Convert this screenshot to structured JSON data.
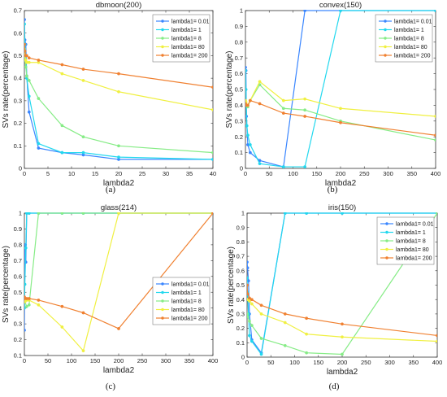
{
  "chart_data": [
    {
      "type": "line",
      "title": "dbmoon(200)",
      "caption": "(a)",
      "xlabel": "lambda2",
      "ylabel": "SVs rate(percentage)",
      "xlim": [
        0,
        40
      ],
      "ylim": [
        0,
        0.7
      ],
      "xticks": [
        "0",
        "5",
        "10",
        "15",
        "20",
        "25",
        "30",
        "35",
        "40"
      ],
      "yticks": [
        "0",
        "0.1",
        "0.2",
        "0.3",
        "0.4",
        "0.5",
        "0.6",
        "0.7"
      ],
      "legend_position": "top-right",
      "series": [
        {
          "name": "lambda1= 0.01",
          "color": "#3a86ff",
          "points": [
            [
              0.01,
              0.66
            ],
            [
              0.1,
              0.57
            ],
            [
              0.3,
              0.55
            ],
            [
              0.5,
              0.41
            ],
            [
              1,
              0.25
            ],
            [
              3,
              0.09
            ],
            [
              8,
              0.07
            ],
            [
              12.5,
              0.06
            ],
            [
              20,
              0.04
            ],
            [
              40,
              0.04
            ]
          ]
        },
        {
          "name": "lambda1= 1",
          "color": "#22d8ee",
          "points": [
            [
              0.01,
              0.64
            ],
            [
              0.1,
              0.55
            ],
            [
              0.3,
              0.5
            ],
            [
              0.5,
              0.4
            ],
            [
              1,
              0.32
            ],
            [
              3,
              0.11
            ],
            [
              8,
              0.07
            ],
            [
              12.5,
              0.07
            ],
            [
              20,
              0.05
            ],
            [
              40,
              0.04
            ]
          ]
        },
        {
          "name": "lambda1= 8",
          "color": "#86ec86",
          "points": [
            [
              0.01,
              0.53
            ],
            [
              0.1,
              0.48
            ],
            [
              0.3,
              0.45
            ],
            [
              0.5,
              0.41
            ],
            [
              1,
              0.39
            ],
            [
              3,
              0.31
            ],
            [
              8,
              0.19
            ],
            [
              12.5,
              0.14
            ],
            [
              20,
              0.1
            ],
            [
              40,
              0.07
            ]
          ]
        },
        {
          "name": "lambda1= 80",
          "color": "#f0f040",
          "points": [
            [
              0.01,
              0.52
            ],
            [
              0.1,
              0.5
            ],
            [
              0.3,
              0.48
            ],
            [
              0.5,
              0.47
            ],
            [
              1,
              0.47
            ],
            [
              3,
              0.47
            ],
            [
              8,
              0.42
            ],
            [
              12.5,
              0.39
            ],
            [
              20,
              0.34
            ],
            [
              40,
              0.26
            ]
          ]
        },
        {
          "name": "lambda1= 200",
          "color": "#f08030",
          "points": [
            [
              0.01,
              0.55
            ],
            [
              0.1,
              0.52
            ],
            [
              0.3,
              0.5
            ],
            [
              0.5,
              0.5
            ],
            [
              1,
              0.49
            ],
            [
              3,
              0.48
            ],
            [
              8,
              0.46
            ],
            [
              12.5,
              0.44
            ],
            [
              20,
              0.42
            ],
            [
              40,
              0.36
            ]
          ]
        }
      ]
    },
    {
      "type": "line",
      "title": "convex(150)",
      "caption": "(b)",
      "xlabel": "lambda2",
      "ylabel": "SVs rate(percentage)",
      "xlim": [
        0,
        400
      ],
      "ylim": [
        0,
        1
      ],
      "xticks": [
        "0",
        "50",
        "100",
        "150",
        "200",
        "250",
        "300",
        "350",
        "400"
      ],
      "yticks": [
        "0",
        "0.1",
        "0.2",
        "0.3",
        "0.4",
        "0.5",
        "0.6",
        "0.7",
        "0.8",
        "0.9",
        "1"
      ],
      "legend_position": "top-right",
      "series": [
        {
          "name": "lambda1= 0.01",
          "color": "#3a86ff",
          "points": [
            [
              0.01,
              0.64
            ],
            [
              1,
              0.62
            ],
            [
              2,
              0.33
            ],
            [
              5,
              0.15
            ],
            [
              10,
              0.1
            ],
            [
              30,
              0.05
            ],
            [
              80,
              0.01
            ],
            [
              125,
              1
            ],
            [
              200,
              1
            ],
            [
              400,
              1
            ]
          ]
        },
        {
          "name": "lambda1= 1",
          "color": "#22d8ee",
          "points": [
            [
              0.01,
              0.62
            ],
            [
              1,
              0.5
            ],
            [
              3,
              0.27
            ],
            [
              5,
              0.21
            ],
            [
              10,
              0.15
            ],
            [
              30,
              0.03
            ],
            [
              80,
              0.01
            ],
            [
              125,
              0.01
            ],
            [
              200,
              1
            ],
            [
              400,
              1
            ]
          ]
        },
        {
          "name": "lambda1= 8",
          "color": "#86ec86",
          "points": [
            [
              0.01,
              0.41
            ],
            [
              1,
              0.4
            ],
            [
              5,
              0.39
            ],
            [
              10,
              0.43
            ],
            [
              30,
              0.53
            ],
            [
              80,
              0.38
            ],
            [
              125,
              0.37
            ],
            [
              200,
              0.3
            ],
            [
              400,
              0.18
            ]
          ]
        },
        {
          "name": "lambda1= 80",
          "color": "#f0f040",
          "points": [
            [
              0.01,
              0.43
            ],
            [
              1,
              0.42
            ],
            [
              5,
              0.4
            ],
            [
              10,
              0.43
            ],
            [
              30,
              0.55
            ],
            [
              80,
              0.43
            ],
            [
              125,
              0.44
            ],
            [
              200,
              0.38
            ],
            [
              400,
              0.33
            ]
          ]
        },
        {
          "name": "lambda1= 200",
          "color": "#f08030",
          "points": [
            [
              0.01,
              0.41
            ],
            [
              1,
              0.4
            ],
            [
              5,
              0.4
            ],
            [
              10,
              0.43
            ],
            [
              30,
              0.41
            ],
            [
              80,
              0.35
            ],
            [
              125,
              0.33
            ],
            [
              200,
              0.29
            ],
            [
              400,
              0.21
            ]
          ]
        }
      ]
    },
    {
      "type": "line",
      "title": "glass(214)",
      "caption": "(c)",
      "xlabel": "lambda2",
      "ylabel": "SVs rate(percentage)",
      "xlim": [
        0,
        400
      ],
      "ylim": [
        0.1,
        1
      ],
      "xticks": [
        "0",
        "50",
        "100",
        "150",
        "200",
        "250",
        "300",
        "350",
        "400"
      ],
      "yticks": [
        "0.1",
        "0.2",
        "0.3",
        "0.4",
        "0.5",
        "0.6",
        "0.7",
        "0.8",
        "0.9",
        "1"
      ],
      "legend_position": "lower-right",
      "series": [
        {
          "name": "lambda1= 0.01",
          "color": "#3a86ff",
          "points": [
            [
              0.01,
              0.26
            ],
            [
              1,
              0.77
            ],
            [
              2,
              0.8
            ],
            [
              3,
              0.69
            ],
            [
              5,
              1
            ],
            [
              10,
              1
            ],
            [
              30,
              1
            ],
            [
              80,
              1
            ],
            [
              125,
              1
            ],
            [
              200,
              1
            ],
            [
              400,
              1
            ]
          ]
        },
        {
          "name": "lambda1= 1",
          "color": "#22d8ee",
          "points": [
            [
              0.01,
              0.4
            ],
            [
              1,
              0.55
            ],
            [
              3,
              0.78
            ],
            [
              5,
              1
            ],
            [
              10,
              1
            ],
            [
              30,
              1
            ],
            [
              80,
              1
            ],
            [
              125,
              1
            ],
            [
              200,
              1
            ],
            [
              400,
              1
            ]
          ]
        },
        {
          "name": "lambda1= 8",
          "color": "#86ec86",
          "points": [
            [
              0.01,
              0.45
            ],
            [
              1,
              0.44
            ],
            [
              5,
              0.41
            ],
            [
              10,
              0.42
            ],
            [
              30,
              1
            ],
            [
              80,
              1
            ],
            [
              125,
              1
            ],
            [
              200,
              1
            ],
            [
              400,
              1
            ]
          ]
        },
        {
          "name": "lambda1= 80",
          "color": "#f0f040",
          "points": [
            [
              0.01,
              0.45
            ],
            [
              1,
              0.44
            ],
            [
              5,
              0.45
            ],
            [
              10,
              0.45
            ],
            [
              30,
              0.42
            ],
            [
              80,
              0.28
            ],
            [
              125,
              0.13
            ],
            [
              200,
              1
            ],
            [
              400,
              1
            ]
          ]
        },
        {
          "name": "lambda1= 200",
          "color": "#f08030",
          "points": [
            [
              0.01,
              0.47
            ],
            [
              1,
              0.46
            ],
            [
              5,
              0.46
            ],
            [
              10,
              0.46
            ],
            [
              30,
              0.45
            ],
            [
              80,
              0.41
            ],
            [
              125,
              0.37
            ],
            [
              200,
              0.27
            ],
            [
              400,
              1
            ]
          ]
        }
      ]
    },
    {
      "type": "line",
      "title": "iris(150)",
      "caption": "(d)",
      "xlabel": "lambda2",
      "ylabel": "SVs rate(percentage)",
      "xlim": [
        0,
        400
      ],
      "ylim": [
        0,
        1
      ],
      "xticks": [
        "0",
        "50",
        "100",
        "150",
        "200",
        "250",
        "300",
        "350",
        "400"
      ],
      "yticks": [
        "0",
        "0.1",
        "0.2",
        "0.3",
        "0.4",
        "0.5",
        "0.6",
        "0.7",
        "0.8",
        "0.9",
        "1"
      ],
      "legend_position": "top-right",
      "series": [
        {
          "name": "lambda1= 0.01",
          "color": "#3a86ff",
          "points": [
            [
              0.01,
              0.66
            ],
            [
              1,
              0.62
            ],
            [
              3,
              0.53
            ],
            [
              5,
              0.3
            ],
            [
              10,
              0.12
            ],
            [
              30,
              0.03
            ],
            [
              80,
              1
            ],
            [
              125,
              1
            ],
            [
              200,
              1
            ],
            [
              400,
              1
            ]
          ]
        },
        {
          "name": "lambda1= 1",
          "color": "#22d8ee",
          "points": [
            [
              0.01,
              0.55
            ],
            [
              1,
              0.45
            ],
            [
              3,
              0.3
            ],
            [
              5,
              0.15
            ],
            [
              10,
              0.11
            ],
            [
              30,
              0.02
            ],
            [
              80,
              1
            ],
            [
              125,
              1
            ],
            [
              200,
              1
            ],
            [
              400,
              1
            ]
          ]
        },
        {
          "name": "lambda1= 8",
          "color": "#86ec86",
          "points": [
            [
              0.01,
              0.3
            ],
            [
              1,
              0.28
            ],
            [
              5,
              0.25
            ],
            [
              10,
              0.22
            ],
            [
              30,
              0.13
            ],
            [
              80,
              0.08
            ],
            [
              125,
              0.03
            ],
            [
              200,
              0.02
            ],
            [
              400,
              1
            ]
          ]
        },
        {
          "name": "lambda1= 80",
          "color": "#f0f040",
          "points": [
            [
              0.01,
              0.4
            ],
            [
              1,
              0.4
            ],
            [
              5,
              0.39
            ],
            [
              10,
              0.37
            ],
            [
              30,
              0.3
            ],
            [
              80,
              0.24
            ],
            [
              125,
              0.16
            ],
            [
              200,
              0.14
            ],
            [
              400,
              0.11
            ]
          ]
        },
        {
          "name": "lambda1= 200",
          "color": "#f08030",
          "points": [
            [
              0.01,
              0.5
            ],
            [
              1,
              0.44
            ],
            [
              5,
              0.41
            ],
            [
              10,
              0.4
            ],
            [
              30,
              0.36
            ],
            [
              80,
              0.3
            ],
            [
              125,
              0.27
            ],
            [
              200,
              0.23
            ],
            [
              400,
              0.15
            ]
          ]
        }
      ]
    }
  ]
}
